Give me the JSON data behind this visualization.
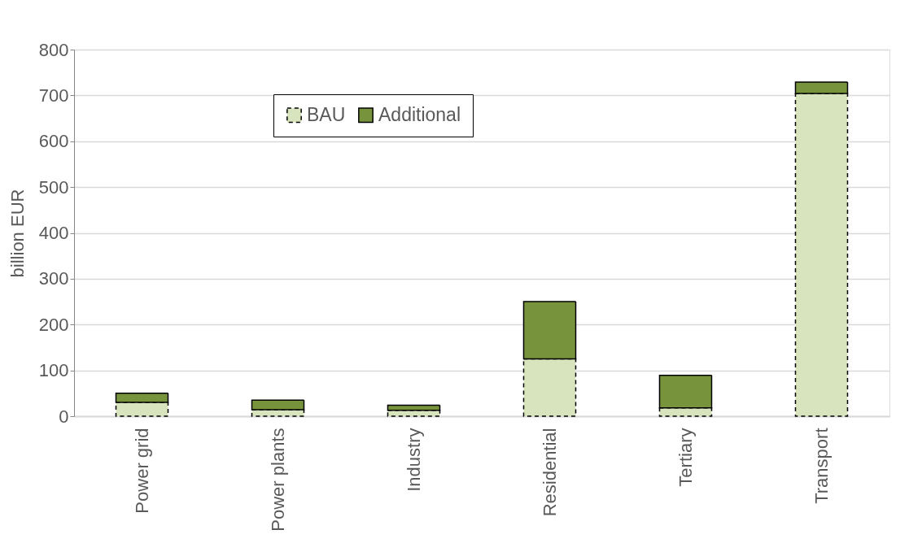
{
  "chart_data": {
    "type": "bar",
    "stacked": true,
    "ylabel": "billion EUR",
    "categories": [
      "Power grid",
      "Power plants",
      "Industry",
      "Residential",
      "Tertiary",
      "Transport"
    ],
    "series": [
      {
        "name": "BAU",
        "color": "#d7e4bd",
        "line_style": "dashed",
        "values": [
          30,
          14,
          13,
          125,
          18,
          704
        ]
      },
      {
        "name": "Additional",
        "color": "#77933c",
        "line_style": "solid",
        "values": [
          20,
          21,
          11,
          125,
          71,
          25
        ]
      }
    ],
    "ylim": [
      0,
      800
    ],
    "yticks": [
      0,
      100,
      200,
      300,
      400,
      500,
      600,
      700,
      800
    ],
    "grid": "y",
    "legend": "top"
  }
}
